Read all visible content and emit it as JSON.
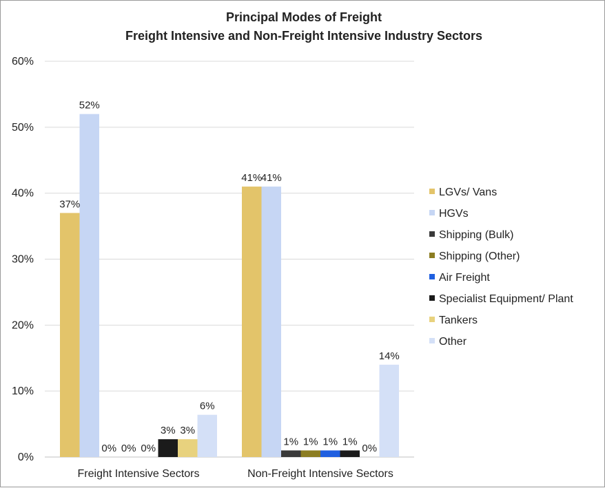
{
  "chart_data": {
    "type": "bar",
    "title": [
      "Principal Modes of Freight",
      "Freight Intensive and Non-Freight Intensive Industry Sectors"
    ],
    "categories": [
      "Freight Intensive Sectors",
      "Non-Freight Intensive Sectors"
    ],
    "series": [
      {
        "name": "LGVs/ Vans",
        "color": "#e3c46a",
        "values": [
          37,
          41
        ],
        "labels": [
          "37%",
          "41%"
        ]
      },
      {
        "name": "HGVs",
        "color": "#c6d6f4",
        "values": [
          52,
          41
        ],
        "labels": [
          "52%",
          "41%"
        ]
      },
      {
        "name": "Shipping (Bulk)",
        "color": "#3a3a3a",
        "values": [
          0,
          1
        ],
        "labels": [
          "0%",
          "1%"
        ]
      },
      {
        "name": "Shipping (Other)",
        "color": "#8c7d22",
        "values": [
          0,
          1
        ],
        "labels": [
          "0%",
          "1%"
        ]
      },
      {
        "name": "Air Freight",
        "color": "#1f5fe0",
        "values": [
          0,
          1
        ],
        "labels": [
          "0%",
          "1%"
        ]
      },
      {
        "name": "Specialist Equipment/ Plant",
        "color": "#1b1b1b",
        "values": [
          2.7,
          1
        ],
        "labels": [
          "3%",
          "1%"
        ]
      },
      {
        "name": "Tankers",
        "color": "#e8d27e",
        "values": [
          2.7,
          0
        ],
        "labels": [
          "3%",
          "0%"
        ]
      },
      {
        "name": "Other",
        "color": "#d4e0f7",
        "values": [
          6.4,
          14
        ],
        "labels": [
          "6%",
          "14%"
        ]
      }
    ],
    "ylim": [
      0,
      60
    ],
    "yticks": [
      "0%",
      "10%",
      "20%",
      "30%",
      "40%",
      "50%",
      "60%"
    ],
    "grid": true,
    "legend_position": "right"
  }
}
